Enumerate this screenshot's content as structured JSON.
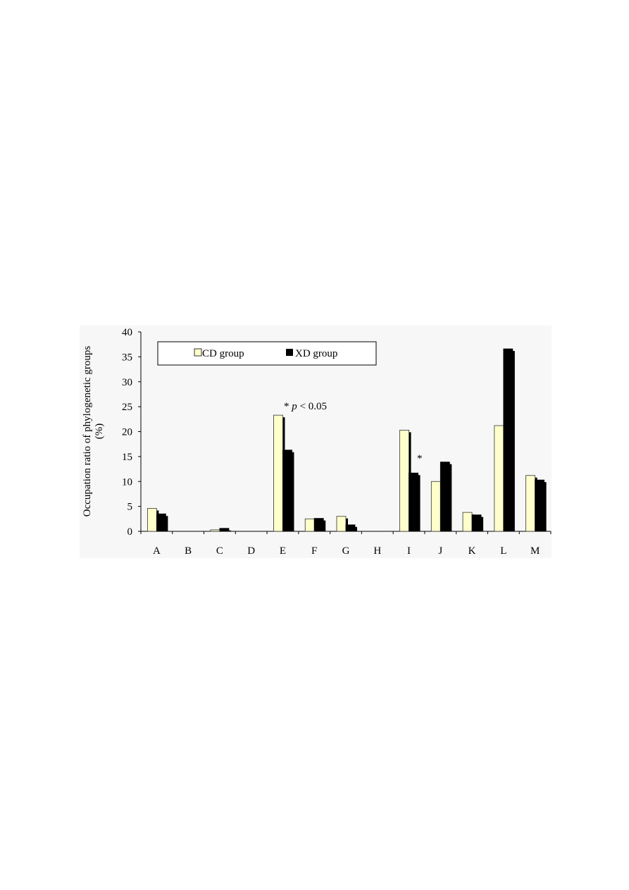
{
  "chart_data": {
    "type": "bar",
    "title": "",
    "xlabel": "",
    "ylabel": "Occupation ratio of phylogenetic groups",
    "ylabel_unit": "(%)",
    "ylim": [
      0,
      40
    ],
    "yticks": [
      0,
      5,
      10,
      15,
      20,
      25,
      30,
      35,
      40
    ],
    "grid": false,
    "legend_position": "top",
    "categories": [
      "A",
      "B",
      "C",
      "D",
      "E",
      "F",
      "G",
      "H",
      "I",
      "J",
      "K",
      "L",
      "M"
    ],
    "series": [
      {
        "name": "CD group",
        "color": "#ffffcc",
        "values": [
          4.6,
          0,
          0.3,
          0,
          23.3,
          2.5,
          3.0,
          0,
          20.3,
          10.0,
          3.8,
          21.2,
          11.2
        ]
      },
      {
        "name": "XD group",
        "color": "#000000",
        "values": [
          3.5,
          0,
          0.6,
          0,
          16.3,
          2.6,
          1.3,
          0,
          11.7,
          13.9,
          3.3,
          36.6,
          10.3
        ]
      }
    ],
    "annotations": [
      {
        "text_prefix": "* ",
        "text_italic": "p",
        "text_suffix": " < 0.05",
        "category": "E"
      },
      {
        "text": "*",
        "category": "I"
      }
    ]
  }
}
